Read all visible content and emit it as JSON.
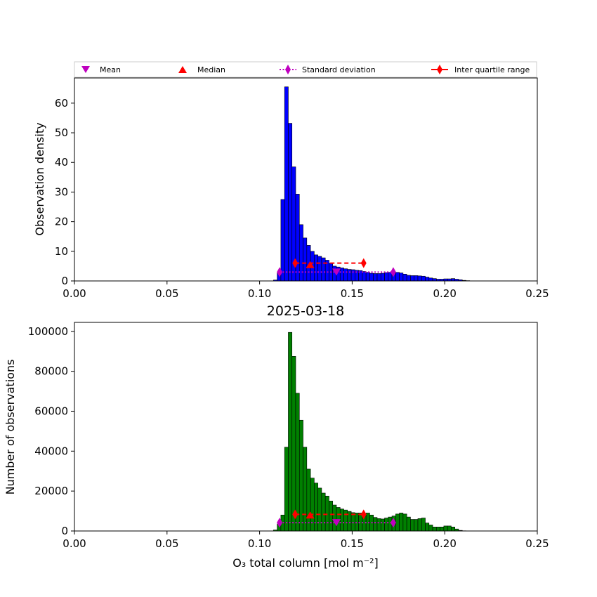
{
  "legend": {
    "mean": "Mean",
    "median": "Median",
    "std": "Standard deviation",
    "iqr": "Inter quartile range"
  },
  "colors": {
    "top_bars": "#0000ff",
    "bottom_bars": "#008000",
    "mean_std": "#bf00bf",
    "median_iqr": "#ff0000",
    "edge": "#000000"
  },
  "chart_data": [
    {
      "type": "bar",
      "panel": "top",
      "title": "",
      "xlabel": "",
      "ylabel": "Observation density",
      "xlim": [
        0.0,
        0.25
      ],
      "ylim": [
        0,
        68.5
      ],
      "xticks": [
        "0.00",
        "0.05",
        "0.10",
        "0.15",
        "0.20",
        "0.25"
      ],
      "yticks": [
        "0",
        "10",
        "20",
        "30",
        "40",
        "50",
        "60"
      ],
      "bin_start": 0.1075,
      "bin_width": 0.002,
      "values": [
        0.3,
        2.7,
        27.5,
        65.5,
        53.2,
        38.5,
        29.3,
        19.0,
        14.5,
        12.0,
        10.0,
        8.8,
        8.3,
        7.8,
        7.0,
        6.0,
        5.0,
        4.7,
        4.4,
        4.1,
        3.9,
        3.8,
        3.6,
        3.5,
        3.2,
        2.9,
        2.6,
        2.5,
        2.5,
        2.6,
        2.8,
        2.9,
        3.0,
        2.9,
        2.7,
        2.3,
        1.9,
        1.8,
        1.8,
        1.7,
        1.6,
        1.3,
        1.0,
        0.8,
        0.6,
        0.6,
        0.7,
        0.7,
        0.8,
        0.6,
        0.4,
        0.2,
        0.1
      ],
      "stats": {
        "mean": 0.1415,
        "median": 0.1273,
        "std_low": 0.1108,
        "std_high": 0.1722,
        "q1": 0.1192,
        "q3": 0.1562
      },
      "markers": {
        "mean_y": 3,
        "median_y": 5.5,
        "std_y": 3,
        "iqr_y": 6
      }
    },
    {
      "type": "bar",
      "panel": "bottom",
      "title": "2025-03-18",
      "xlabel": "O₃ total column [mol m⁻²]",
      "ylabel": "Number of observations",
      "xlim": [
        0.0,
        0.25
      ],
      "ylim": [
        0,
        104500
      ],
      "xticks": [
        "0.00",
        "0.05",
        "0.10",
        "0.15",
        "0.20",
        "0.25"
      ],
      "yticks": [
        "0",
        "20000",
        "40000",
        "60000",
        "80000",
        "100000"
      ],
      "bin_start": 0.1075,
      "bin_width": 0.002,
      "values": [
        500,
        3500,
        8000,
        42000,
        99500,
        87500,
        69000,
        55500,
        42000,
        31000,
        26500,
        24000,
        21500,
        19000,
        17500,
        15000,
        13000,
        11800,
        11000,
        10500,
        9800,
        9200,
        9000,
        9000,
        8800,
        9000,
        8000,
        6800,
        6200,
        6000,
        6500,
        7000,
        7500,
        8500,
        9000,
        8500,
        7000,
        5800,
        5800,
        6200,
        6500,
        4000,
        3000,
        2000,
        2000,
        2000,
        2500,
        2500,
        2000,
        1000,
        300,
        100
      ],
      "stats": {
        "mean": 0.1415,
        "median": 0.1273,
        "std_low": 0.1108,
        "std_high": 0.1722,
        "q1": 0.1192,
        "q3": 0.1562
      },
      "markers": {
        "mean_y": 4200,
        "median_y": 8000,
        "std_y": 4200,
        "iqr_y": 8300
      }
    }
  ]
}
